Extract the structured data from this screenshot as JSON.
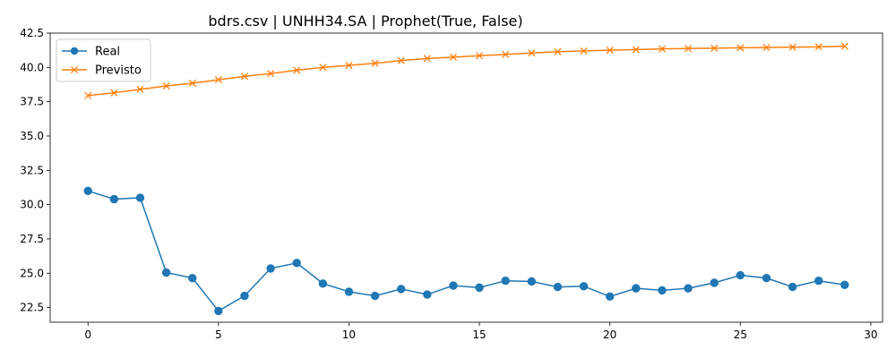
{
  "chart_data": {
    "type": "line",
    "title": "bdrs.csv | UNHH34.SA | Prophet(True, False)",
    "xlabel": "",
    "ylabel": "",
    "xlim": [
      -1.45,
      30.45
    ],
    "ylim": [
      21.43,
      42.5
    ],
    "xticks": [
      0,
      5,
      10,
      15,
      20,
      25,
      30
    ],
    "yticks": [
      22.5,
      25.0,
      27.5,
      30.0,
      32.5,
      35.0,
      37.5,
      40.0,
      42.5
    ],
    "ytick_labels": [
      "22.5",
      "25.0",
      "27.5",
      "30.0",
      "32.5",
      "35.0",
      "37.5",
      "40.0",
      "42.5"
    ],
    "grid": false,
    "legend_position": "top-left",
    "x": [
      0,
      1,
      2,
      3,
      4,
      5,
      6,
      7,
      8,
      9,
      10,
      11,
      12,
      13,
      14,
      15,
      16,
      17,
      18,
      19,
      20,
      21,
      22,
      23,
      24,
      25,
      26,
      27,
      28,
      29
    ],
    "series": [
      {
        "name": "Real",
        "color": "#1f77b4",
        "marker": "circle",
        "values": [
          31.0,
          30.4,
          30.5,
          25.05,
          24.65,
          22.25,
          23.35,
          25.35,
          25.75,
          24.25,
          23.65,
          23.35,
          23.85,
          23.45,
          24.1,
          23.95,
          24.45,
          24.4,
          24.0,
          24.05,
          23.3,
          23.9,
          23.75,
          23.9,
          24.3,
          24.85,
          24.65,
          24.0,
          24.45,
          24.15
        ]
      },
      {
        "name": "Previsto",
        "color": "#ff7f0e",
        "marker": "x",
        "values": [
          37.95,
          38.15,
          38.4,
          38.65,
          38.85,
          39.1,
          39.35,
          39.55,
          39.8,
          40.0,
          40.15,
          40.3,
          40.5,
          40.65,
          40.75,
          40.85,
          40.95,
          41.05,
          41.15,
          41.2,
          41.25,
          41.3,
          41.35,
          41.38,
          41.4,
          41.43,
          41.45,
          41.48,
          41.5,
          41.55
        ]
      }
    ]
  }
}
